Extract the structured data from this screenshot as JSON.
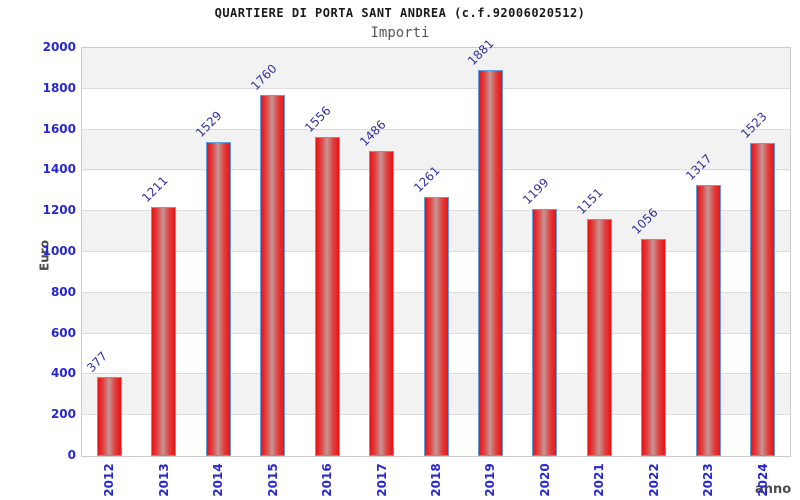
{
  "chart_data": {
    "type": "bar",
    "title": "QUARTIERE DI PORTA SANT ANDREA (c.f.92006020512)",
    "subtitle": "Importi",
    "ylabel": "Euro",
    "xlabel": "anno",
    "categories": [
      "2012",
      "2013",
      "2014",
      "2015",
      "2016",
      "2017",
      "2018",
      "2019",
      "2020",
      "2021",
      "2022",
      "2023",
      "2024"
    ],
    "values": [
      377,
      1211,
      1529,
      1760,
      1556,
      1486,
      1261,
      1881,
      1199,
      1151,
      1056,
      1317,
      1523
    ],
    "ylim": [
      0,
      2000
    ],
    "ytick_step": 200,
    "yticks": [
      0,
      200,
      400,
      600,
      800,
      1000,
      1200,
      1400,
      1600,
      1800,
      2000
    ],
    "grid": true,
    "background_bands": "alternating gray/white, 200-unit bands, gray at top",
    "legend": "none"
  },
  "colors": {
    "bar_red": "#e81313",
    "bar_light": "#c59595",
    "bar_border": "#5e9fe0",
    "tick_blue": "#2727cf",
    "value_blue": "#32329e",
    "band_gray": "#f2f2f2",
    "grid_line": "#dcdcdc",
    "plot_border": "#cccccc"
  }
}
